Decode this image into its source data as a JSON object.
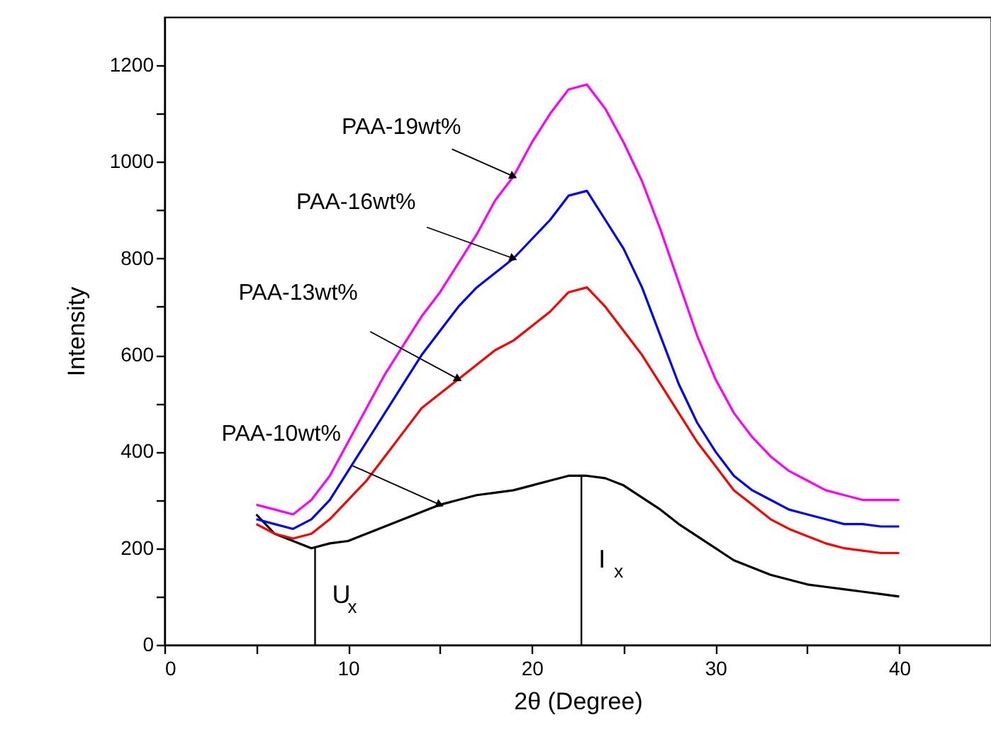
{
  "chart_data": {
    "type": "line",
    "xlabel": "2θ (Degree)",
    "ylabel": "Intensity",
    "x": [
      5,
      6,
      7,
      8,
      9,
      10,
      11,
      12,
      13,
      14,
      15,
      16,
      17,
      18,
      19,
      20,
      21,
      22,
      23,
      24,
      25,
      26,
      27,
      28,
      29,
      30,
      31,
      32,
      33,
      34,
      35,
      36,
      37,
      38,
      39,
      40
    ],
    "series": [
      {
        "name": "PAA-10wt%",
        "color": "#000000",
        "values": [
          270,
          230,
          215,
          200,
          210,
          215,
          230,
          245,
          260,
          275,
          290,
          300,
          310,
          315,
          320,
          330,
          340,
          350,
          350,
          345,
          330,
          305,
          280,
          250,
          225,
          200,
          175,
          160,
          145,
          135,
          125,
          120,
          115,
          110,
          105,
          100
        ]
      },
      {
        "name": "PAA-13wt%",
        "color": "#ff0000",
        "values": [
          250,
          230,
          220,
          230,
          260,
          300,
          340,
          390,
          440,
          490,
          520,
          550,
          580,
          610,
          630,
          660,
          690,
          730,
          740,
          700,
          650,
          600,
          540,
          480,
          420,
          370,
          320,
          290,
          260,
          240,
          225,
          210,
          200,
          195,
          190,
          190
        ]
      },
      {
        "name": "PAA-16wt%",
        "color": "#0000ff",
        "values": [
          260,
          250,
          240,
          260,
          300,
          360,
          420,
          480,
          540,
          600,
          650,
          700,
          740,
          770,
          800,
          840,
          880,
          930,
          940,
          880,
          820,
          740,
          640,
          540,
          460,
          400,
          350,
          320,
          300,
          280,
          270,
          260,
          250,
          250,
          245,
          245
        ]
      },
      {
        "name": "PAA-19wt%",
        "color": "#ff00ff",
        "values": [
          290,
          280,
          270,
          300,
          350,
          420,
          490,
          560,
          620,
          680,
          730,
          790,
          850,
          920,
          970,
          1040,
          1100,
          1150,
          1160,
          1110,
          1040,
          960,
          860,
          750,
          640,
          550,
          480,
          430,
          390,
          360,
          340,
          320,
          310,
          300,
          300,
          300
        ]
      }
    ],
    "xlim": [
      0,
      45
    ],
    "xticks": [
      0,
      {
        "value": 5,
        "label": null
      },
      10,
      {
        "value": 15,
        "label": null
      },
      20,
      {
        "value": 25,
        "label": null
      },
      30,
      {
        "value": 35,
        "label": null
      },
      40
    ],
    "ylim": [
      0,
      1300
    ],
    "yticks": [
      0,
      {
        "value": 100,
        "label": null
      },
      200,
      {
        "value": 300,
        "label": null
      },
      400,
      {
        "value": 500,
        "label": null
      },
      600,
      {
        "value": 700,
        "label": null
      },
      800,
      {
        "value": 900,
        "label": null
      },
      1000,
      {
        "value": 1100,
        "label": null
      },
      1200
    ],
    "ref_lines": [
      {
        "axis": "x",
        "value": 8.2,
        "label": "U$_{x}$"
      },
      {
        "axis": "x",
        "value": 22.7,
        "label": "I$_{x}$"
      }
    ],
    "grid": false
  }
}
